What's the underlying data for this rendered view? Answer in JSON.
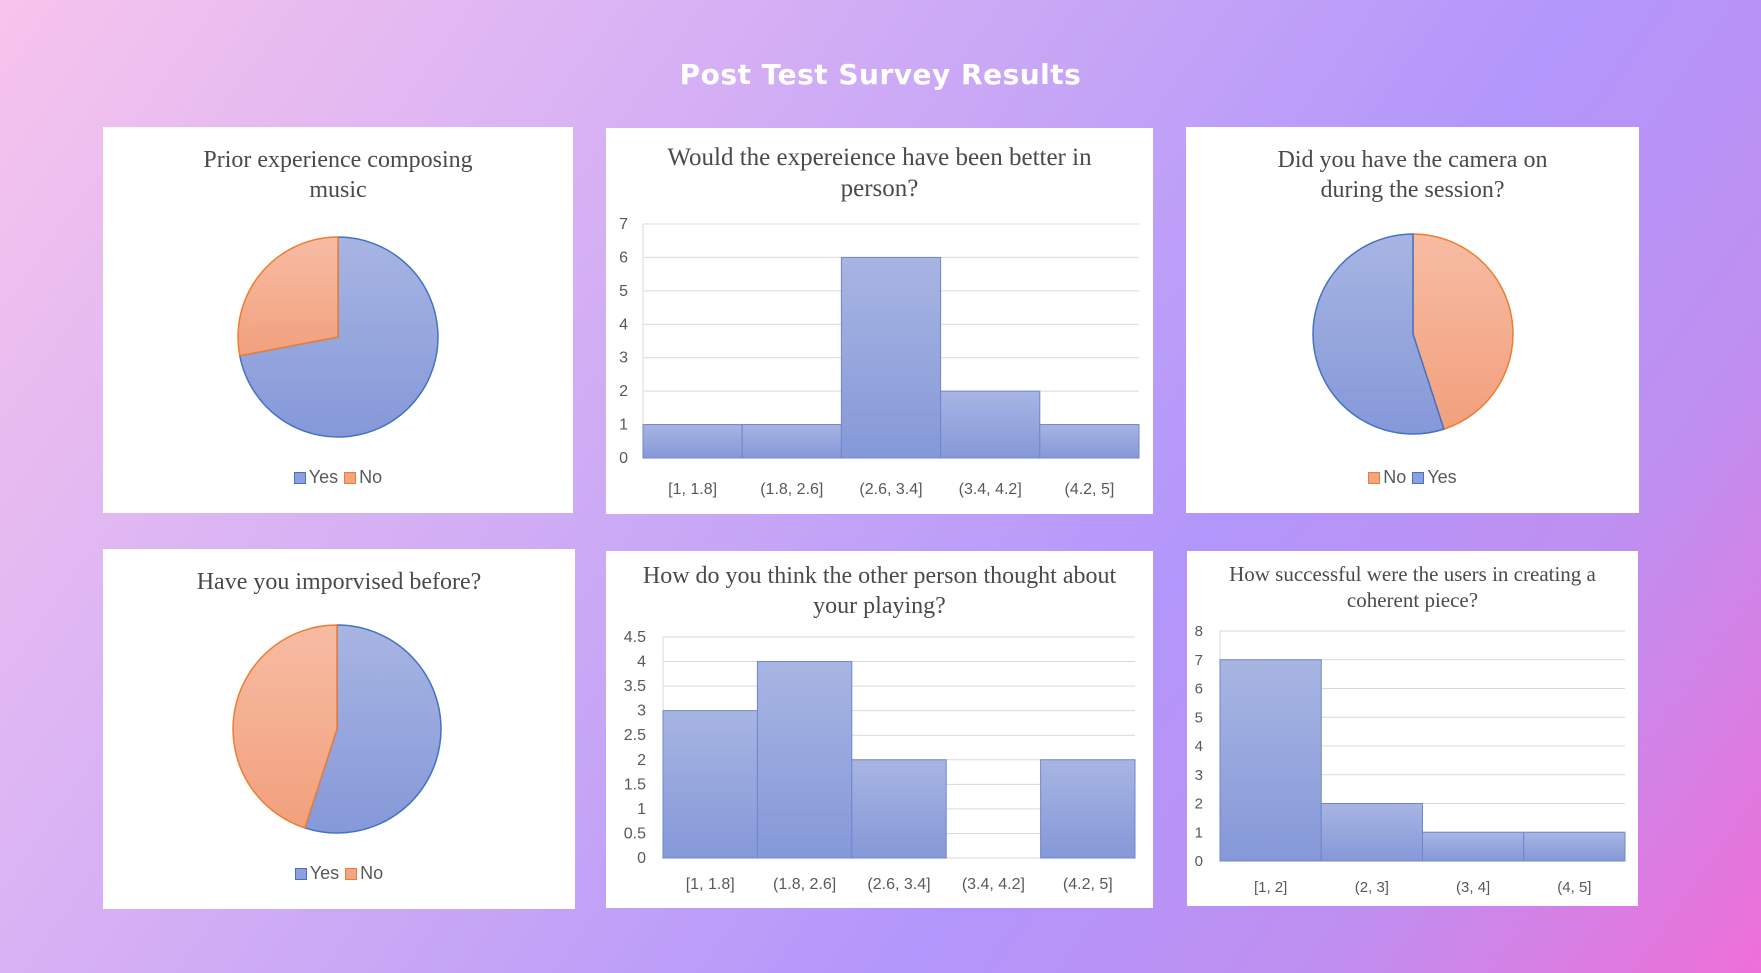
{
  "page": {
    "title": "Post Test Survey Results"
  },
  "colors": {
    "blue": "#8da0dd",
    "blue_edge": "#4472c4",
    "orange": "#f4a583",
    "orange_edge": "#ed7d31"
  },
  "chart_data": [
    {
      "type": "pie",
      "title": "Prior experience composing music",
      "labels": [
        "Yes",
        "No"
      ],
      "values": [
        72,
        28
      ],
      "legend": "bottom"
    },
    {
      "type": "bar",
      "title": "Would the expereience have been better in person?",
      "categories": [
        "[1, 1.8]",
        "(1.8, 2.6]",
        "(2.6, 3.4]",
        "(3.4, 4.2]",
        "(4.2, 5]"
      ],
      "values": [
        1,
        1,
        6,
        2,
        1
      ],
      "ylim": [
        0,
        7
      ],
      "yticks": [
        "0",
        "1",
        "2",
        "3",
        "4",
        "5",
        "6",
        "7"
      ],
      "grid": true
    },
    {
      "type": "pie",
      "title": "Did you have the camera on during the session?",
      "labels": [
        "No",
        "Yes"
      ],
      "values": [
        45,
        55
      ],
      "legend": "bottom"
    },
    {
      "type": "pie",
      "title": "Have you imporvised before?",
      "labels": [
        "Yes",
        "No"
      ],
      "values": [
        55,
        45
      ],
      "legend": "bottom"
    },
    {
      "type": "bar",
      "title": "How do you think the other person thought about your playing?",
      "categories": [
        "[1, 1.8]",
        "(1.8, 2.6]",
        "(2.6, 3.4]",
        "(3.4, 4.2]",
        "(4.2, 5]"
      ],
      "values": [
        3,
        4,
        2,
        0,
        2
      ],
      "ylim": [
        0,
        4.5
      ],
      "yticks": [
        "0",
        "0.5",
        "1",
        "1.5",
        "2",
        "2.5",
        "3",
        "3.5",
        "4",
        "4.5"
      ],
      "grid": true
    },
    {
      "type": "bar",
      "title": "How successful were the users in creating a coherent piece?",
      "categories": [
        "[1, 2]",
        "(2, 3]",
        "(3, 4]",
        "(4, 5]"
      ],
      "values": [
        7,
        2,
        1,
        1
      ],
      "ylim": [
        0,
        8
      ],
      "yticks": [
        "0",
        "1",
        "2",
        "3",
        "4",
        "5",
        "6",
        "7",
        "8"
      ],
      "grid": true
    }
  ]
}
